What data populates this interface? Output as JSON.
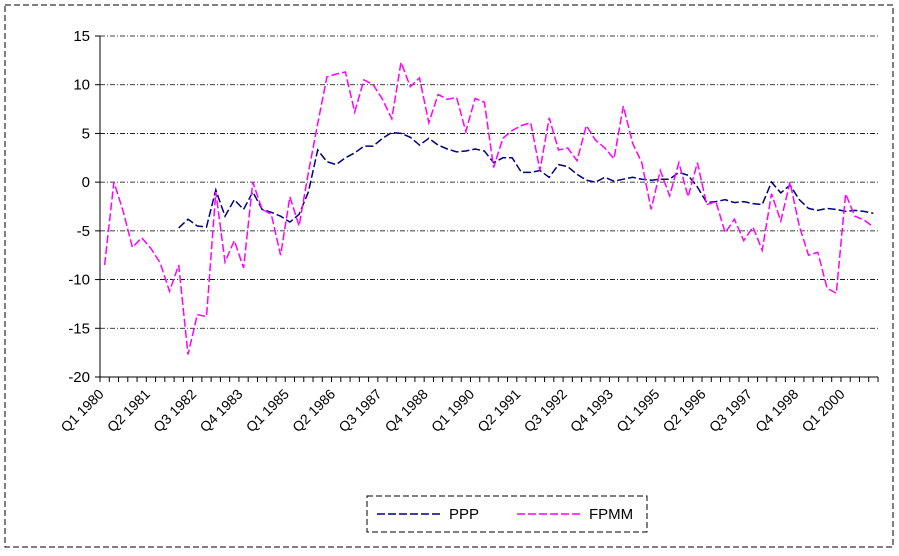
{
  "chart_data": {
    "type": "line",
    "categories": [
      "Q1 1980",
      null,
      null,
      null,
      null,
      "Q2 1981",
      null,
      null,
      null,
      null,
      "Q3 1982",
      null,
      null,
      null,
      null,
      "Q4 1983",
      null,
      null,
      null,
      null,
      "Q1 1985",
      null,
      null,
      null,
      null,
      "Q2 1986",
      null,
      null,
      null,
      null,
      "Q3 1987",
      null,
      null,
      null,
      null,
      "Q4 1988",
      null,
      null,
      null,
      null,
      "Q1 1990",
      null,
      null,
      null,
      null,
      "Q2 1991",
      null,
      null,
      null,
      null,
      "Q3 1992",
      null,
      null,
      null,
      null,
      "Q4 1993",
      null,
      null,
      null,
      null,
      "Q1 1995",
      null,
      null,
      null,
      null,
      "Q2 1996",
      null,
      null,
      null,
      null,
      "Q3 1997",
      null,
      null,
      null,
      null,
      "Q4 1998",
      null,
      null,
      null,
      null,
      "Q1 2000",
      null,
      null,
      null
    ],
    "series": [
      {
        "name": "PPP",
        "color": "#000080",
        "values": [
          null,
          null,
          null,
          null,
          null,
          null,
          null,
          null,
          -4.7,
          -3.8,
          -4.5,
          -4.6,
          -0.8,
          -3.5,
          -1.8,
          -2.8,
          -1,
          -2.8,
          -3.1,
          -3.5,
          -4.1,
          -3.3,
          -1,
          3.3,
          2.1,
          1.8,
          2.5,
          3,
          3.7,
          3.7,
          4.5,
          5.1,
          5,
          4.6,
          3.8,
          4.5,
          3.8,
          3.4,
          3.1,
          3.2,
          3.4,
          3.2,
          2,
          2.5,
          2.5,
          1,
          1,
          1.2,
          0.5,
          1.8,
          1.6,
          0.8,
          0.2,
          0,
          0.5,
          0.1,
          0.3,
          0.5,
          0.3,
          0.2,
          0.3,
          0.3,
          1,
          0.7,
          -0.5,
          -2.1,
          -2,
          -1.8,
          -2.1,
          -2,
          -2.2,
          -2.3,
          0,
          -1.1,
          -0.3,
          -1.8,
          -2.7,
          -2.9,
          -2.7,
          -2.8,
          -3,
          -2.9,
          -3,
          -3.2
        ]
      },
      {
        "name": "FPMM",
        "color": "#ff00ff",
        "values": [
          -8.5,
          0,
          -3,
          -6.7,
          -5.7,
          -6.8,
          -8.3,
          -11.2,
          -8.5,
          -17.7,
          -13.6,
          -13.8,
          -1,
          -8.2,
          -6,
          -8.8,
          0,
          -2.8,
          -3.3,
          -7.5,
          -1.5,
          -4.5,
          1,
          6,
          10.8,
          11.1,
          11.3,
          7.2,
          10.5,
          10,
          8.5,
          6.5,
          12.3,
          9.8,
          10.7,
          6.1,
          9,
          8.5,
          8.7,
          5.2,
          8.6,
          8.2,
          1.5,
          4.5,
          5.3,
          5.8,
          6.1,
          1.2,
          6.6,
          3.3,
          3.5,
          2.2,
          5.8,
          4.3,
          3.5,
          2.4,
          7.8,
          4,
          2,
          -2.8,
          1.2,
          -1.4,
          2,
          -1.5,
          2,
          -2.3,
          -2,
          -5.2,
          -3.8,
          -6,
          -4.6,
          -7,
          -1.2,
          -4,
          0,
          -4.5,
          -7.5,
          -7.2,
          -10.9,
          -11.4,
          -1.2,
          -3.5,
          -3.9,
          -4.6
        ]
      }
    ],
    "ylim": [
      -20,
      15
    ],
    "yticks": [
      -20,
      -15,
      -10,
      -5,
      0,
      5,
      10,
      15
    ],
    "grid": true,
    "legend": "bottom"
  }
}
